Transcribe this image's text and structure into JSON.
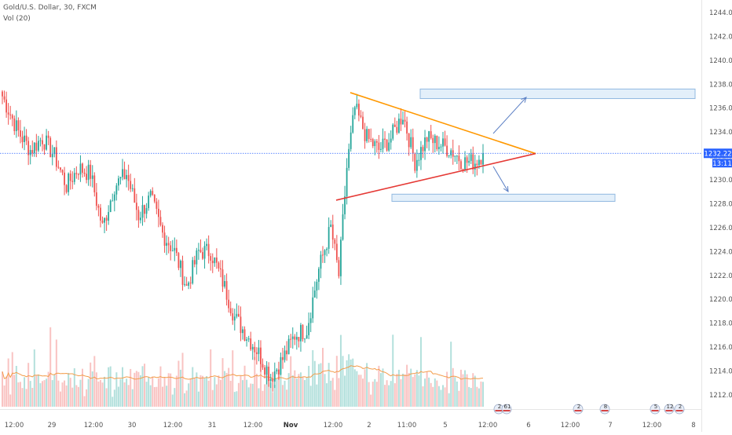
{
  "header": {
    "symbol_line": "Gold/U.S. Dollar, 30, FXCM",
    "volume_line": "Vol (20)"
  },
  "price_axis": {
    "labels": [
      "1212.00",
      "1214.00",
      "1216.00",
      "1218.00",
      "1220.00",
      "1222.00",
      "1224.00",
      "1226.00",
      "1228.00",
      "1230.00",
      "1232.00",
      "1234.00",
      "1236.00",
      "1238.00",
      "1240.00",
      "1242.00",
      "1244.00"
    ],
    "current_price": "1232.22",
    "countdown": "13:11"
  },
  "time_axis": {
    "labels": [
      {
        "text": "12:00",
        "bold": false
      },
      {
        "text": "29",
        "bold": false
      },
      {
        "text": "12:00",
        "bold": false
      },
      {
        "text": "30",
        "bold": false
      },
      {
        "text": "12:00",
        "bold": false
      },
      {
        "text": "31",
        "bold": false
      },
      {
        "text": "12:00",
        "bold": false
      },
      {
        "text": "Nov",
        "bold": true
      },
      {
        "text": "12:00",
        "bold": false
      },
      {
        "text": "2",
        "bold": false
      },
      {
        "text": "11:00",
        "bold": false
      },
      {
        "text": "5",
        "bold": false
      },
      {
        "text": "12:00",
        "bold": false
      },
      {
        "text": "6",
        "bold": false
      },
      {
        "text": "12:00",
        "bold": false
      },
      {
        "text": "7",
        "bold": false
      },
      {
        "text": "12:00",
        "bold": false
      },
      {
        "text": "8",
        "bold": false
      }
    ]
  },
  "events": [
    {
      "text": "2"
    },
    {
      "text": "61"
    },
    {
      "text": "2"
    },
    {
      "text": "8"
    },
    {
      "text": "5"
    },
    {
      "text": "12"
    },
    {
      "text": "2"
    }
  ],
  "colors": {
    "up": "#26a69a",
    "down": "#ef5350",
    "wedge_upper": "#ff9800",
    "wedge_lower": "#e53935",
    "price_line": "#2962ff",
    "target_box_fill": "#e3effa",
    "target_box_stroke": "#90b8e0",
    "arrow": "#5b7fc4",
    "volume_ma": "#f39c4a"
  },
  "chart_data": {
    "type": "candlestick",
    "ylim": [
      1211.0,
      1245.0
    ],
    "last_price": 1232.22,
    "anchors": [
      [
        0,
        1237.0
      ],
      [
        8,
        1234.0
      ],
      [
        14,
        1232.5
      ],
      [
        20,
        1233.5
      ],
      [
        26,
        1232.0
      ],
      [
        32,
        1229.5
      ],
      [
        38,
        1231.0
      ],
      [
        44,
        1230.5
      ],
      [
        50,
        1226.0
      ],
      [
        56,
        1229.5
      ],
      [
        62,
        1230.5
      ],
      [
        68,
        1227.0
      ],
      [
        74,
        1228.5
      ],
      [
        80,
        1225.5
      ],
      [
        86,
        1224.0
      ],
      [
        92,
        1221.0
      ],
      [
        98,
        1224.0
      ],
      [
        104,
        1224.0
      ],
      [
        110,
        1221.5
      ],
      [
        116,
        1218.5
      ],
      [
        122,
        1217.0
      ],
      [
        128,
        1215.5
      ],
      [
        134,
        1213.5
      ],
      [
        140,
        1215.0
      ],
      [
        146,
        1217.0
      ],
      [
        152,
        1217.5
      ],
      [
        158,
        1222.5
      ],
      [
        164,
        1226.0
      ],
      [
        168,
        1222.0
      ],
      [
        172,
        1231.0
      ],
      [
        176,
        1236.0
      ],
      [
        182,
        1233.5
      ],
      [
        188,
        1232.5
      ],
      [
        194,
        1233.5
      ],
      [
        200,
        1235.5
      ],
      [
        206,
        1231.5
      ],
      [
        212,
        1233.5
      ],
      [
        218,
        1233.0
      ],
      [
        224,
        1232.5
      ],
      [
        230,
        1231.5
      ],
      [
        236,
        1231.5
      ],
      [
        240,
        1232.2
      ]
    ],
    "wedge_upper": [
      [
        1,
        1237.3
      ],
      [
        2,
        1232.2
      ]
    ],
    "wedge_lower": [
      [
        1,
        1228.3
      ],
      [
        2,
        1232.2
      ]
    ],
    "target_zone_upper": [
      1236.8,
      1237.6
    ],
    "target_zone_lower": [
      1228.2,
      1228.8
    ]
  }
}
